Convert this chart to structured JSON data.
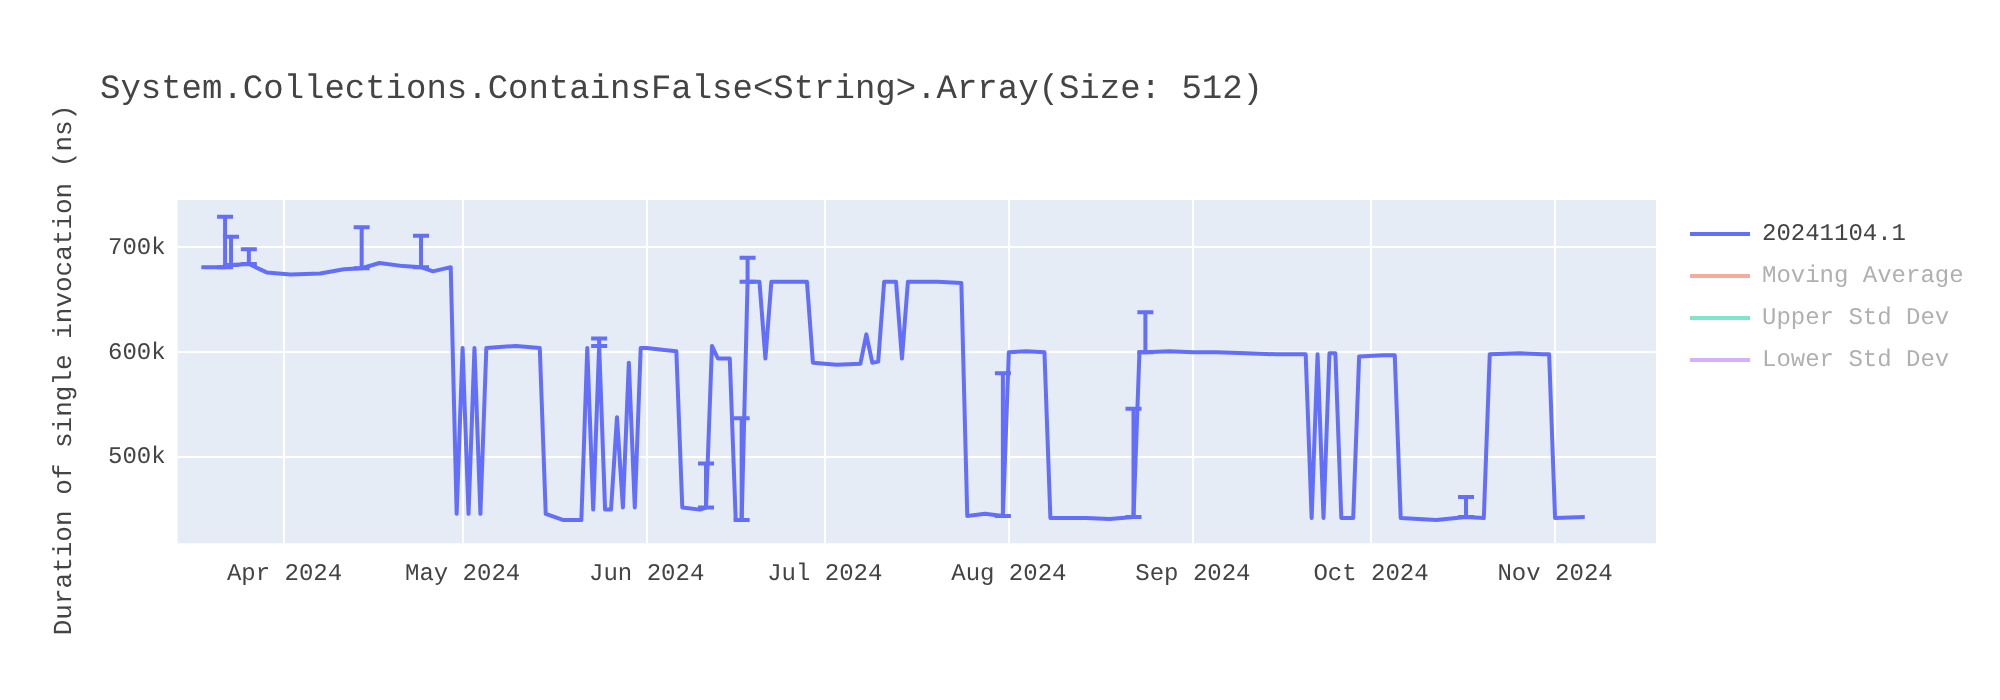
{
  "chart_data": {
    "type": "line",
    "title": "System.Collections.ContainsFalse<String>.Array(Size: 512)",
    "ylabel": "Duration of single invocation (ns)",
    "xlim": [
      "2024-03-14",
      "2024-11-18"
    ],
    "xticks": [
      {
        "value": "2024-04-01",
        "label": "Apr 2024"
      },
      {
        "value": "2024-05-01",
        "label": "May 2024"
      },
      {
        "value": "2024-06-01",
        "label": "Jun 2024"
      },
      {
        "value": "2024-07-01",
        "label": "Jul 2024"
      },
      {
        "value": "2024-08-01",
        "label": "Aug 2024"
      },
      {
        "value": "2024-09-01",
        "label": "Sep 2024"
      },
      {
        "value": "2024-10-01",
        "label": "Oct 2024"
      },
      {
        "value": "2024-11-01",
        "label": "Nov 2024"
      }
    ],
    "ylim": [
      418000,
      745000
    ],
    "yticks": [
      {
        "value": 500000,
        "label": "500k"
      },
      {
        "value": 600000,
        "label": "600k"
      },
      {
        "value": 700000,
        "label": "700k"
      }
    ],
    "grid": true,
    "legend": "top right",
    "x": [
      "2024-03-18",
      "2024-03-22",
      "2024-03-23",
      "2024-03-26",
      "2024-03-29",
      "2024-04-02",
      "2024-04-07",
      "2024-04-11",
      "2024-04-14",
      "2024-04-17",
      "2024-04-21",
      "2024-04-24",
      "2024-04-26",
      "2024-04-29",
      "2024-04-30",
      "2024-05-01",
      "2024-05-02",
      "2024-05-03",
      "2024-05-04",
      "2024-05-05",
      "2024-05-10",
      "2024-05-14",
      "2024-05-15",
      "2024-05-18",
      "2024-05-21",
      "2024-05-22",
      "2024-05-23",
      "2024-05-24",
      "2024-05-25",
      "2024-05-26",
      "2024-05-27",
      "2024-05-28",
      "2024-05-29",
      "2024-05-30",
      "2024-05-31",
      "2024-06-01",
      "2024-06-04",
      "2024-06-06",
      "2024-06-07",
      "2024-06-10",
      "2024-06-11",
      "2024-06-12",
      "2024-06-13",
      "2024-06-15",
      "2024-06-16",
      "2024-06-17",
      "2024-06-18",
      "2024-06-20",
      "2024-06-21",
      "2024-06-22",
      "2024-06-26",
      "2024-06-28",
      "2024-06-29",
      "2024-07-03",
      "2024-07-07",
      "2024-07-08",
      "2024-07-09",
      "2024-07-10",
      "2024-07-11",
      "2024-07-13",
      "2024-07-14",
      "2024-07-15",
      "2024-07-20",
      "2024-07-24",
      "2024-07-25",
      "2024-07-28",
      "2024-07-31",
      "2024-08-01",
      "2024-08-04",
      "2024-08-07",
      "2024-08-08",
      "2024-08-14",
      "2024-08-18",
      "2024-08-22",
      "2024-08-23",
      "2024-08-24",
      "2024-08-28",
      "2024-09-01",
      "2024-09-05",
      "2024-09-10",
      "2024-09-15",
      "2024-09-20",
      "2024-09-21",
      "2024-09-22",
      "2024-09-23",
      "2024-09-24",
      "2024-09-25",
      "2024-09-26",
      "2024-09-28",
      "2024-09-29",
      "2024-10-03",
      "2024-10-05",
      "2024-10-06",
      "2024-10-12",
      "2024-10-17",
      "2024-10-20",
      "2024-10-21",
      "2024-10-26",
      "2024-10-30",
      "2024-10-31",
      "2024-11-01",
      "2024-11-06"
    ],
    "series": [
      {
        "name": "20241104.1",
        "color": "#636efa",
        "values": [
          681000,
          681000,
          683000,
          684000,
          676000,
          674000,
          675000,
          679000,
          680000,
          685000,
          682000,
          681000,
          677000,
          681000,
          446000,
          604000,
          446000,
          604000,
          446000,
          604000,
          606000,
          604000,
          446000,
          440000,
          440000,
          604000,
          450000,
          606000,
          450000,
          450000,
          538000,
          452000,
          590000,
          452000,
          604000,
          604000,
          602000,
          601000,
          452000,
          450000,
          452000,
          606000,
          594000,
          594000,
          440000,
          440000,
          667000,
          667000,
          594000,
          667000,
          667000,
          667000,
          590000,
          588000,
          589000,
          617000,
          590000,
          591000,
          667000,
          667000,
          594000,
          667000,
          667000,
          666000,
          444000,
          446000,
          444000,
          600000,
          601000,
          600000,
          442000,
          442000,
          441000,
          443000,
          600000,
          600000,
          601000,
          600000,
          600000,
          599000,
          598000,
          598000,
          442000,
          598000,
          442000,
          599000,
          599000,
          442000,
          442000,
          596000,
          597000,
          597000,
          442000,
          440000,
          443000,
          442000,
          598000,
          599000,
          598000,
          598000,
          442000,
          443000
        ],
        "errors": [
          null,
          [
            681000,
            729000
          ],
          [
            683000,
            710000
          ],
          [
            684000,
            698000
          ],
          null,
          null,
          null,
          null,
          [
            680000,
            719000
          ],
          null,
          null,
          [
            681000,
            711000
          ],
          null,
          null,
          null,
          null,
          null,
          null,
          null,
          null,
          null,
          null,
          null,
          null,
          null,
          null,
          null,
          [
            606000,
            613000
          ],
          null,
          null,
          null,
          null,
          null,
          null,
          null,
          null,
          null,
          null,
          null,
          null,
          [
            452000,
            494000
          ],
          null,
          null,
          null,
          null,
          [
            440000,
            537000
          ],
          [
            667000,
            690000
          ],
          null,
          null,
          null,
          null,
          null,
          null,
          null,
          null,
          null,
          null,
          null,
          null,
          null,
          null,
          null,
          null,
          null,
          null,
          null,
          [
            444000,
            580000
          ],
          null,
          null,
          null,
          null,
          null,
          null,
          [
            443000,
            546000
          ],
          null,
          [
            600000,
            638000
          ],
          null,
          null,
          null,
          null,
          null,
          null,
          null,
          null,
          null,
          null,
          null,
          null,
          null,
          null,
          null,
          null,
          null,
          null,
          [
            443000,
            462000
          ],
          null,
          null,
          null,
          null,
          null,
          null,
          null
        ]
      },
      {
        "name": "Moving Average",
        "color": "#f5ab9d",
        "values": [
          null,
          null,
          null,
          null,
          null,
          null,
          null,
          null,
          null,
          null,
          null,
          null,
          null,
          null,
          null,
          null,
          null,
          null,
          null,
          null,
          null,
          null,
          null,
          null,
          null,
          null,
          null,
          null,
          null,
          null,
          null,
          null,
          null,
          null,
          null,
          null,
          null,
          null,
          null,
          null,
          null,
          null,
          null,
          null,
          null,
          null,
          null,
          null,
          null,
          null,
          null,
          null,
          null,
          null,
          null,
          null,
          null,
          null,
          null,
          null,
          null,
          null,
          null,
          null,
          null,
          null,
          null,
          null,
          null,
          null,
          null,
          null,
          null,
          null,
          null,
          null,
          null,
          null,
          null,
          null,
          null,
          null,
          null,
          null,
          null,
          null,
          null,
          null,
          null,
          null,
          null,
          null,
          null,
          null,
          null,
          null,
          null,
          null,
          null,
          null,
          null,
          null
        ]
      },
      {
        "name": "Upper Std Dev",
        "color": "#80e6cb",
        "values": [
          null,
          null,
          null,
          null,
          null,
          null,
          null,
          null,
          null,
          null,
          null,
          null,
          null,
          null,
          null,
          null,
          null,
          null,
          null,
          null,
          null,
          null,
          null,
          null,
          null,
          null,
          null,
          null,
          null,
          null,
          null,
          null,
          null,
          null,
          null,
          null,
          null,
          null,
          null,
          null,
          null,
          null,
          null,
          null,
          null,
          null,
          null,
          null,
          null,
          null,
          null,
          null,
          null,
          null,
          null,
          null,
          null,
          null,
          null,
          null,
          null,
          null,
          null,
          null,
          null,
          null,
          null,
          null,
          null,
          null,
          null,
          null,
          null,
          null,
          null,
          null,
          null,
          null,
          null,
          null,
          null,
          null,
          null,
          null,
          null,
          null,
          null,
          null,
          null,
          null,
          null,
          null,
          null,
          null,
          null,
          null,
          null,
          null,
          null,
          null,
          null,
          null
        ]
      },
      {
        "name": "Lower Std Dev",
        "color": "#d5b1fd",
        "values": [
          null,
          null,
          null,
          null,
          null,
          null,
          null,
          null,
          null,
          null,
          null,
          null,
          null,
          null,
          null,
          null,
          null,
          null,
          null,
          null,
          null,
          null,
          null,
          null,
          null,
          null,
          null,
          null,
          null,
          null,
          null,
          null,
          null,
          null,
          null,
          null,
          null,
          null,
          null,
          null,
          null,
          null,
          null,
          null,
          null,
          null,
          null,
          null,
          null,
          null,
          null,
          null,
          null,
          null,
          null,
          null,
          null,
          null,
          null,
          null,
          null,
          null,
          null,
          null,
          null,
          null,
          null,
          null,
          null,
          null,
          null,
          null,
          null,
          null,
          null,
          null,
          null,
          null,
          null,
          null,
          null,
          null,
          null,
          null,
          null,
          null,
          null,
          null,
          null,
          null,
          null,
          null,
          null,
          null,
          null,
          null,
          null,
          null,
          null,
          null,
          null,
          null
        ]
      }
    ]
  }
}
